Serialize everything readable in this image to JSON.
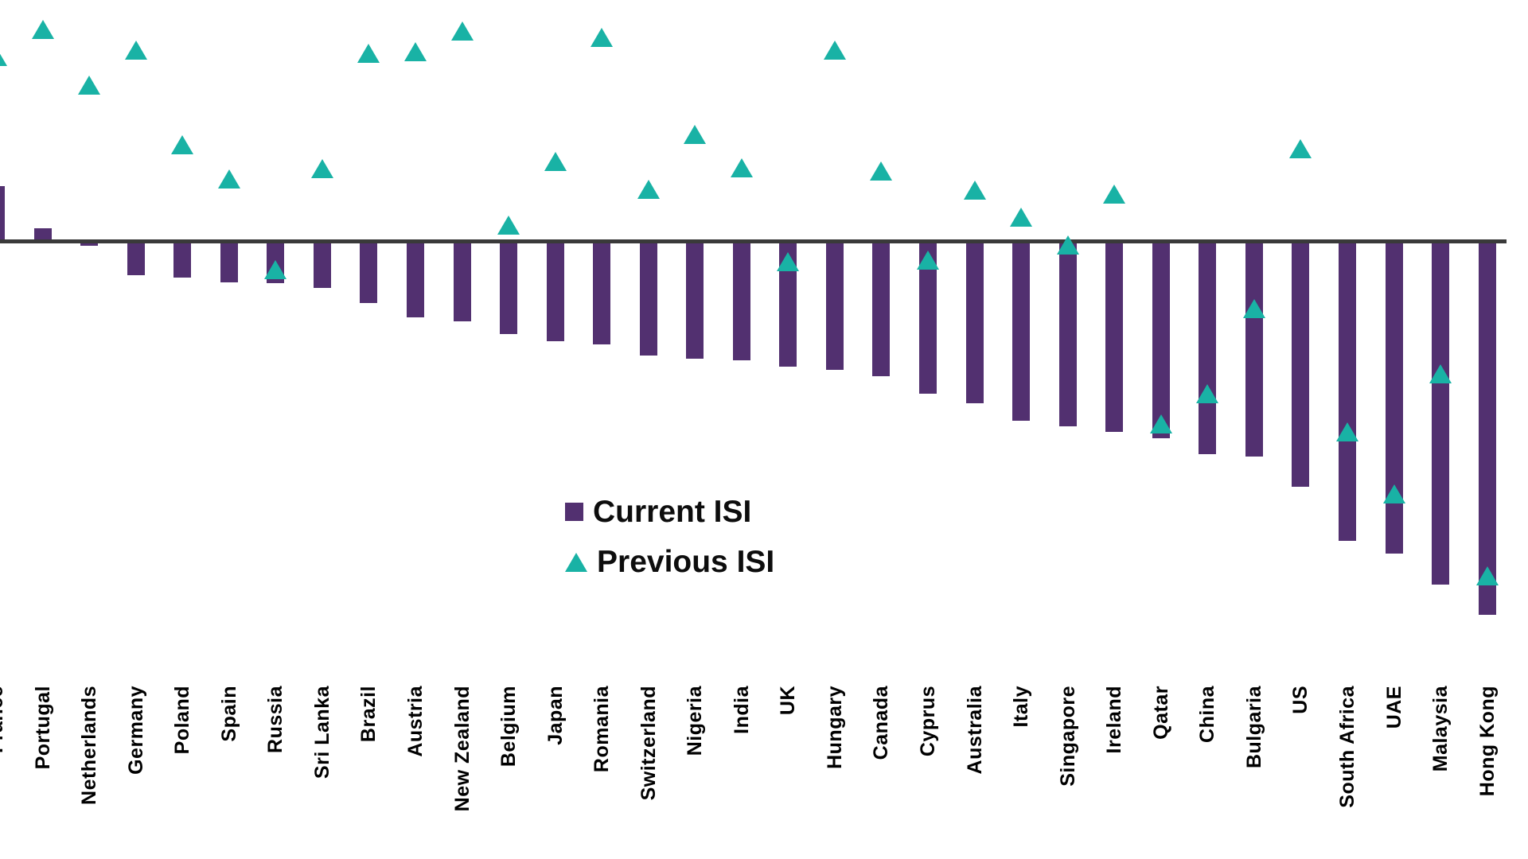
{
  "chart_data": {
    "type": "bar",
    "title": "",
    "xlabel": "",
    "ylabel": "",
    "y_axis": "unlabeled (no ticks or gridlines shown; values estimated in index points)",
    "ylim": [
      -58,
      32
    ],
    "legend_position": "center-middle",
    "zero_baseline": true,
    "categories": [
      "France",
      "Portugal",
      "Netherlands",
      "Germany",
      "Poland",
      "Spain",
      "Russia",
      "Sri Lanka",
      "Brazil",
      "Austria",
      "New Zealand",
      "Belgium",
      "Japan",
      "Romania",
      "Switzerland",
      "Nigeria",
      "India",
      "UK",
      "Hungary",
      "Canada",
      "Cyprus",
      "Australia",
      "Italy",
      "Singapore",
      "Ireland",
      "Qatar",
      "China",
      "Bulgaria",
      "US",
      "South Africa",
      "UAE",
      "Malaysia",
      "Hong Kong"
    ],
    "series": [
      {
        "name": "Current ISI",
        "type": "bar",
        "color": "#523070",
        "values": [
          7.3,
          1.8,
          -0.5,
          -4.4,
          -4.7,
          -5.3,
          -5.4,
          -6.0,
          -8.0,
          -9.9,
          -10.4,
          -12.1,
          -13.0,
          -13.4,
          -14.9,
          -15.3,
          -15.5,
          -16.4,
          -16.8,
          -17.6,
          -19.9,
          -21.1,
          -23.4,
          -24.2,
          -24.9,
          -25.7,
          -27.8,
          -28.1,
          -32.1,
          -39.2,
          -40.8,
          -44.9,
          -48.9
        ]
      },
      {
        "name": "Previous ISI",
        "type": "scatter-triangle",
        "color": "#19b2a5",
        "values": [
          24.3,
          27.8,
          20.5,
          25.1,
          12.7,
          8.2,
          -3.6,
          9.6,
          24.7,
          24.9,
          27.6,
          2.2,
          10.5,
          26.8,
          6.9,
          14.1,
          9.7,
          -2.6,
          25.1,
          9.3,
          -2.4,
          6.8,
          3.2,
          -0.4,
          6.2,
          -23.9,
          -19.9,
          -8.7,
          12.2,
          -24.9,
          -33.0,
          -17.3,
          -43.7
        ]
      }
    ]
  },
  "colors": {
    "current_isi": "#523070",
    "previous_isi": "#19b2a5",
    "axis_line": "#3a3a3a",
    "label_text": "#000000",
    "background": "#ffffff"
  }
}
